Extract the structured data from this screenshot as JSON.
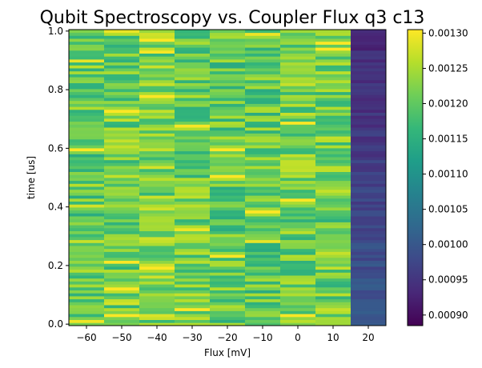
{
  "chart_data": {
    "type": "heatmap",
    "title": "Qubit Spectroscopy vs. Coupler Flux q3 c13",
    "xlabel": "Flux [mV]",
    "ylabel": "time [us]",
    "x": [
      -60,
      -50,
      -40,
      -30,
      -20,
      -10,
      0,
      10,
      20
    ],
    "xlim": [
      -65,
      25
    ],
    "ylim": [
      -0.005,
      1.005
    ],
    "xticks": [
      "-60",
      "-50",
      "-40",
      "-30",
      "-20",
      "-10",
      "0",
      "10",
      "20"
    ],
    "yticks": [
      "0.0",
      "0.2",
      "0.4",
      "0.6",
      "0.8",
      "1.0"
    ],
    "n_time_rows": 100,
    "colormap": "viridis",
    "colorbar": {
      "vmin": 0.000885,
      "vmax": 0.001305,
      "ticks": [
        "0.00090",
        "0.00095",
        "0.00100",
        "0.00105",
        "0.00110",
        "0.00115",
        "0.00120",
        "0.00125",
        "0.00130"
      ]
    },
    "column_typical_values": [
      0.0012,
      0.00121,
      0.00122,
      0.00121,
      0.0012,
      0.0012,
      0.00121,
      0.00121,
      0.001
    ],
    "grid": false,
    "legend": "none"
  }
}
